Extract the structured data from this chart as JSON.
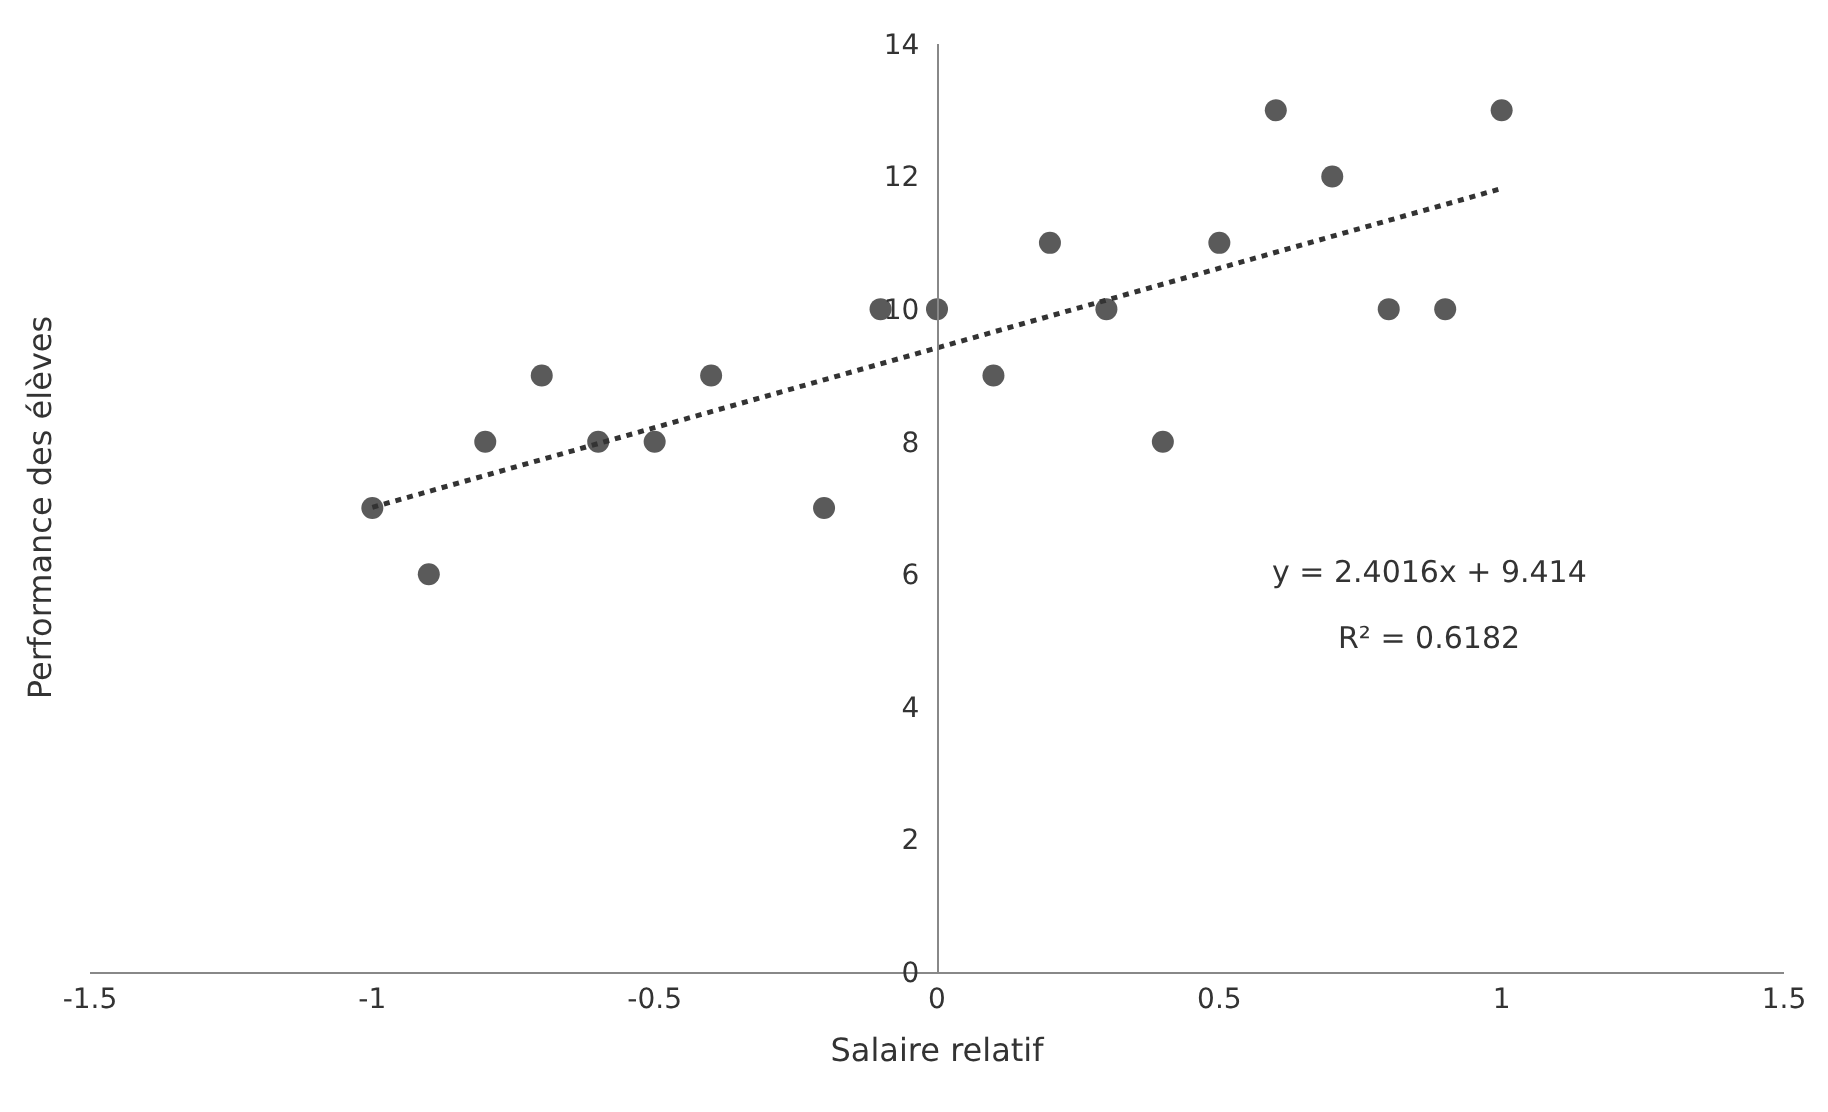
{
  "chart_data": {
    "type": "scatter",
    "xlabel": "Salaire relatif",
    "ylabel": "Performance des élèves",
    "x": [
      -1,
      -0.9,
      -0.8,
      -0.7,
      -0.6,
      -0.5,
      -0.4,
      -0.2,
      -0.1,
      0,
      0.1,
      0.2,
      0.3,
      0.4,
      0.5,
      0.6,
      0.7,
      0.8,
      0.9,
      1
    ],
    "series": [
      {
        "color": "#5a5a5a",
        "marker": "circle",
        "values": [
          7,
          6,
          8,
          9,
          8,
          8,
          9,
          7,
          10,
          10,
          9,
          11,
          10,
          8,
          11,
          13,
          12,
          10,
          10,
          13
        ]
      },
      {
        "type": "line",
        "color": "#333333",
        "line_style": "dotted",
        "marker": "none",
        "x": [
          -1,
          1
        ],
        "values": [
          7.01,
          11.82
        ]
      }
    ],
    "xlim": [
      -1.5,
      1.5
    ],
    "xticks": [
      -1.5,
      -1,
      -0.5,
      0,
      0.5,
      1,
      1.5
    ],
    "ylim": [
      0,
      14
    ],
    "yticks": [
      0,
      2,
      4,
      6,
      8,
      10,
      12,
      14
    ],
    "grid": false,
    "annotations": [
      "y = 2.4016x + 9.414",
      "R² = 0.6182"
    ]
  }
}
